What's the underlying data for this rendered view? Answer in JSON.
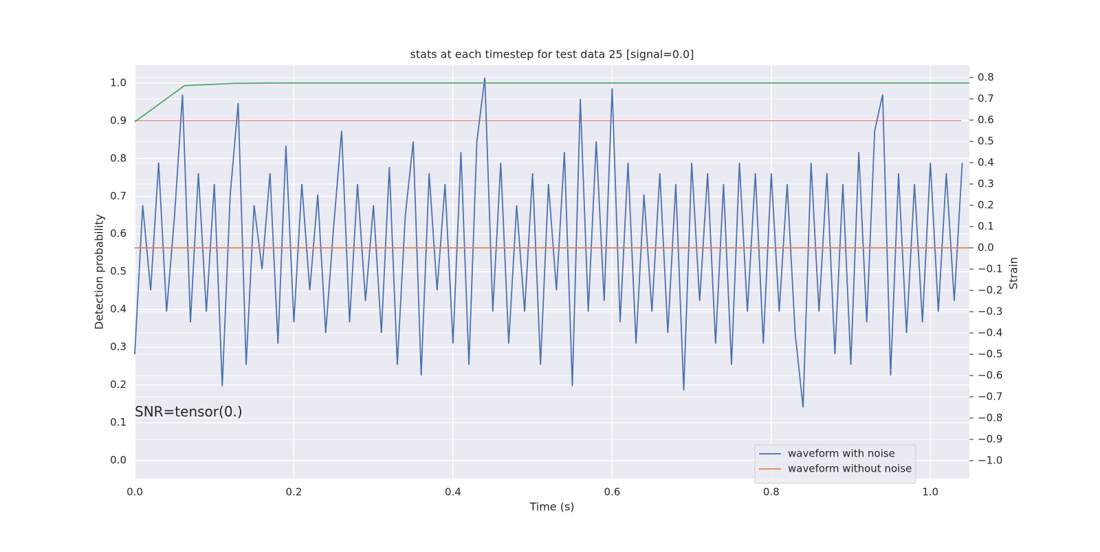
{
  "chart_data": {
    "type": "line",
    "title": "stats at each timestep for test data 25 [signal=0.0]",
    "xlabel": "Time (s)",
    "ylabel": "Detection probability",
    "y2label": "Strain",
    "annotation": "SNR=tensor(0.)",
    "xlim": [
      0,
      1.049
    ],
    "ylim": [
      -0.048,
      1.047
    ],
    "y2lim": [
      -1.084,
      0.858
    ],
    "xticks": [
      {
        "value": 0,
        "label": "0.0"
      },
      0.2,
      0.4,
      0.6,
      0.8,
      {
        "value": 1,
        "label": "1.0"
      }
    ],
    "yticks": [
      {
        "value": 0,
        "label": "0.0"
      },
      0.1,
      0.2,
      0.3,
      0.4,
      0.5,
      0.6,
      0.7,
      0.8,
      0.9,
      {
        "value": 1,
        "label": "1.0"
      }
    ],
    "y2ticks": [
      {
        "value": -1,
        "label": "−1.0"
      },
      {
        "value": -0.9,
        "label": "−0.9"
      },
      {
        "value": -0.8,
        "label": "−0.8"
      },
      {
        "value": -0.7,
        "label": "−0.7"
      },
      {
        "value": -0.6,
        "label": "−0.6"
      },
      {
        "value": -0.5,
        "label": "−0.5"
      },
      {
        "value": -0.4,
        "label": "−0.4"
      },
      {
        "value": -0.3,
        "label": "−0.3"
      },
      {
        "value": -0.2,
        "label": "−0.2"
      },
      {
        "value": -0.1,
        "label": "−0.1"
      },
      {
        "value": 0,
        "label": "0.0"
      },
      0.1,
      0.2,
      0.3,
      0.4,
      0.5,
      0.6,
      0.7,
      0.8
    ],
    "grid": true,
    "legend": "lower right",
    "series": [
      {
        "name": "waveform with noise",
        "color": "#4c72b0",
        "axis": "y2",
        "x": [
          0,
          0.01,
          0.02,
          0.03,
          0.04,
          0.05,
          0.06,
          0.07,
          0.08,
          0.09,
          0.1,
          0.11,
          0.12,
          0.13,
          0.14,
          0.15,
          0.16,
          0.17,
          0.18,
          0.19,
          0.2,
          0.21,
          0.22,
          0.23,
          0.24,
          0.25,
          0.26,
          0.27,
          0.28,
          0.29,
          0.3,
          0.31,
          0.32,
          0.33,
          0.34,
          0.35,
          0.36,
          0.37,
          0.38,
          0.39,
          0.4,
          0.41,
          0.42,
          0.43,
          0.44,
          0.45,
          0.46,
          0.47,
          0.48,
          0.49,
          0.5,
          0.51,
          0.52,
          0.53,
          0.54,
          0.55,
          0.56,
          0.57,
          0.58,
          0.59,
          0.6,
          0.61,
          0.62,
          0.63,
          0.64,
          0.65,
          0.66,
          0.67,
          0.68,
          0.69,
          0.7,
          0.71,
          0.72,
          0.73,
          0.74,
          0.75,
          0.76,
          0.77,
          0.78,
          0.79,
          0.8,
          0.81,
          0.82,
          0.83,
          0.84,
          0.85,
          0.86,
          0.87,
          0.88,
          0.89,
          0.9,
          0.91,
          0.92,
          0.93,
          0.94,
          0.95,
          0.96,
          0.97,
          0.98,
          0.99,
          1,
          1.01,
          1.02,
          1.03,
          1.04
        ],
        "values": [
          -0.5,
          0.2,
          -0.2,
          0.4,
          -0.3,
          0.15,
          0.72,
          -0.35,
          0.35,
          -0.3,
          0.3,
          -0.65,
          0.25,
          0.68,
          -0.55,
          0.2,
          -0.1,
          0.35,
          -0.45,
          0.48,
          -0.35,
          0.3,
          -0.2,
          0.25,
          -0.4,
          0.1,
          0.55,
          -0.35,
          0.3,
          -0.25,
          0.2,
          -0.4,
          0.38,
          -0.55,
          0.15,
          0.5,
          -0.6,
          0.35,
          -0.2,
          0.3,
          -0.45,
          0.45,
          -0.55,
          0.5,
          0.8,
          -0.3,
          0.4,
          -0.45,
          0.2,
          -0.3,
          0.35,
          -0.55,
          0.3,
          -0.2,
          0.45,
          -0.65,
          0.7,
          -0.3,
          0.5,
          -0.25,
          0.75,
          -0.35,
          0.4,
          -0.45,
          0.25,
          -0.3,
          0.35,
          -0.4,
          0.3,
          -0.67,
          0.4,
          -0.25,
          0.35,
          -0.45,
          0.3,
          -0.55,
          0.4,
          -0.3,
          0.35,
          -0.45,
          0.35,
          -0.3,
          0.3,
          -0.4,
          -0.75,
          0.4,
          -0.3,
          0.35,
          -0.5,
          0.3,
          -0.55,
          0.45,
          -0.35,
          0.55,
          0.72,
          -0.6,
          0.35,
          -0.4,
          0.3,
          -0.35,
          0.4,
          -0.3,
          0.35,
          -0.25,
          0.4
        ]
      },
      {
        "name": "waveform without noise",
        "color": "#dd8452",
        "axis": "y2",
        "x": [
          0,
          1.049
        ],
        "values": [
          0,
          0
        ]
      },
      {
        "color": "#55a868",
        "x": [
          0,
          0.0625,
          0.125,
          0.1875,
          1.049
        ],
        "values": [
          0.897,
          0.993,
          0.999,
          1.0,
          1.0
        ]
      },
      {
        "color": "#c44e52",
        "x": [
          0,
          1.039
        ],
        "values": [
          0.9,
          0.9
        ]
      }
    ]
  }
}
